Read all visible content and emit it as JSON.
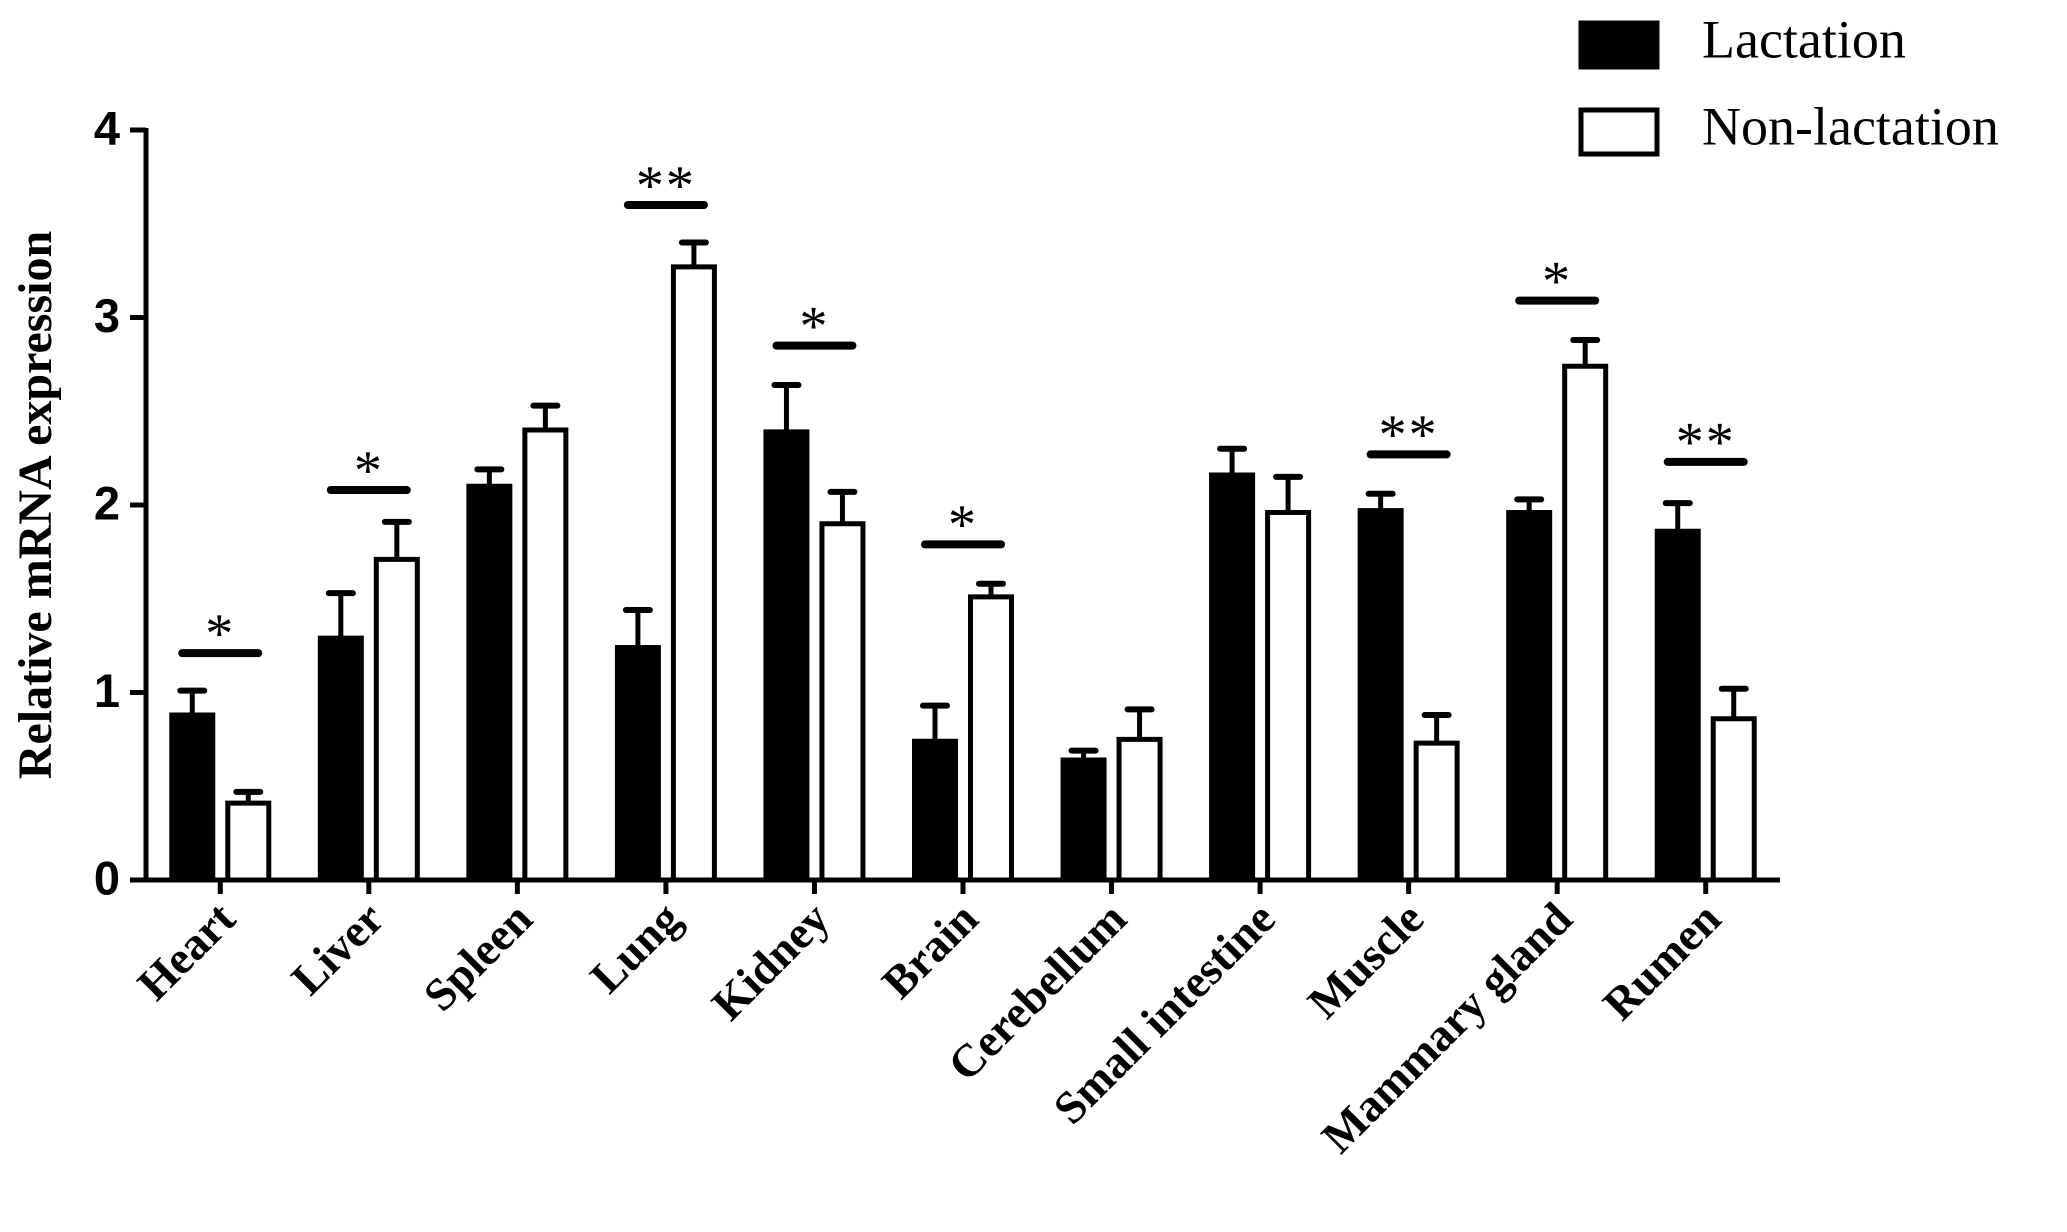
{
  "chart_data": {
    "type": "bar",
    "ylabel": "Relative mRNA expression",
    "categories": [
      "Heart",
      "Liver",
      "Spleen",
      "Lung",
      "Kidney",
      "Brain",
      "Cerebellum",
      "Small intestine",
      "Muscle",
      "Mammary gland",
      "Rumen"
    ],
    "series": [
      {
        "name": "Lactation",
        "color": "#000000",
        "values": [
          0.88,
          1.29,
          2.1,
          1.24,
          2.39,
          0.74,
          0.64,
          2.16,
          1.97,
          1.96,
          1.86
        ],
        "errors": [
          0.13,
          0.24,
          0.09,
          0.2,
          0.25,
          0.19,
          0.05,
          0.14,
          0.09,
          0.07,
          0.15
        ]
      },
      {
        "name": "Non-lactation",
        "color": "#ffffff",
        "values": [
          0.41,
          1.71,
          2.4,
          3.27,
          1.9,
          1.51,
          0.75,
          1.96,
          0.73,
          2.74,
          0.86
        ],
        "errors": [
          0.06,
          0.2,
          0.13,
          0.13,
          0.17,
          0.07,
          0.16,
          0.19,
          0.15,
          0.14,
          0.16
        ]
      }
    ],
    "significance": [
      "*",
      "*",
      null,
      "**",
      "*",
      "*",
      null,
      null,
      "**",
      "*",
      "**"
    ],
    "significance_y": [
      1.21,
      2.08,
      null,
      3.6,
      2.85,
      1.79,
      null,
      null,
      2.27,
      3.09,
      2.23
    ],
    "ylim": [
      0,
      4
    ],
    "yticks": [
      0,
      1,
      2,
      3,
      4
    ],
    "grid": false,
    "legend": "upper right"
  }
}
